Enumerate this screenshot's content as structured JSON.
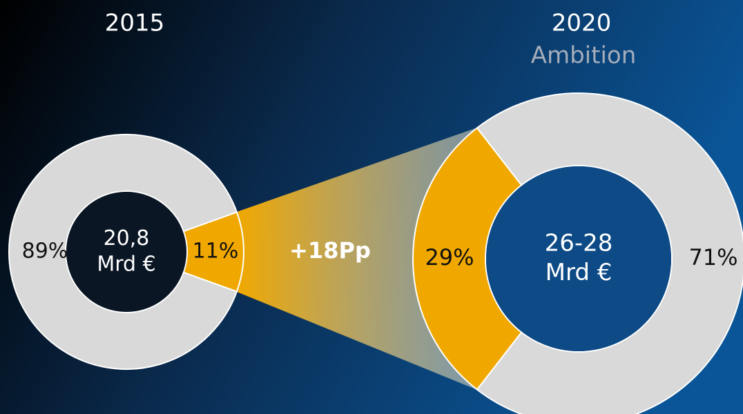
{
  "chart_data": [
    {
      "type": "donut",
      "title": "2015",
      "categories": [
        null,
        null
      ],
      "values": [
        11,
        89
      ],
      "value_labels": [
        "11%",
        "89%"
      ],
      "colors": [
        "#f0a800",
        "#d9d9d9"
      ],
      "center_label": [
        "20,8",
        "Mrd €"
      ]
    },
    {
      "type": "donut",
      "title": "2020",
      "subtitle": "Ambition",
      "categories": [
        null,
        null
      ],
      "values": [
        29,
        71
      ],
      "value_labels": [
        "29%",
        "71%"
      ],
      "colors": [
        "#f0a800",
        "#d9d9d9"
      ],
      "center_label": [
        "26-28",
        "Mrd €"
      ]
    }
  ],
  "annotation": "+18Pp"
}
